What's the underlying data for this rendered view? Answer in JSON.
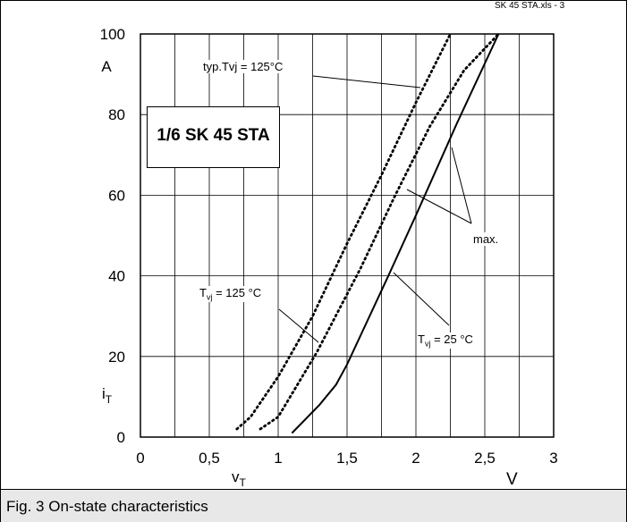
{
  "header": {
    "file_ref": "SK 45 STA.xls - 3"
  },
  "caption": "Fig. 3 On-state characteristics",
  "chart_data": {
    "type": "line",
    "title": "",
    "device_label": "1/6 SK 45 STA",
    "xlabel": {
      "main": "v",
      "sub": "T"
    },
    "ylabel": {
      "main": "i",
      "sub": "T"
    },
    "x_unit": "V",
    "y_unit": "A",
    "xlim": [
      0,
      3
    ],
    "ylim": [
      0,
      100
    ],
    "x_ticks": [
      {
        "value": 0,
        "label": "0"
      },
      {
        "value": 0.5,
        "label": "0,5"
      },
      {
        "value": 1,
        "label": "1"
      },
      {
        "value": 1.5,
        "label": "1,5"
      },
      {
        "value": 2,
        "label": "2"
      },
      {
        "value": 2.5,
        "label": "2,5"
      },
      {
        "value": 3,
        "label": "3"
      }
    ],
    "y_ticks": [
      {
        "value": 0,
        "label": "0"
      },
      {
        "value": 20,
        "label": "20"
      },
      {
        "value": 40,
        "label": "40"
      },
      {
        "value": 60,
        "label": "60"
      },
      {
        "value": 80,
        "label": "80"
      },
      {
        "value": 100,
        "label": "100"
      }
    ],
    "grid": true,
    "grid_minor_x_step": 0.25,
    "series": [
      {
        "id": "typ25",
        "style": "solid",
        "color": "#000000",
        "x": [
          1.1,
          1.3,
          1.42,
          1.5,
          1.8,
          2.0,
          2.3,
          2.6
        ],
        "y": [
          1,
          8,
          13,
          18,
          40,
          55,
          78,
          100
        ]
      },
      {
        "id": "typ125",
        "style": "dotted",
        "color": "#000000",
        "x": [
          0.7,
          0.8,
          1.0,
          1.25,
          1.5,
          1.75,
          2.0,
          2.25
        ],
        "y": [
          2,
          5,
          15,
          30,
          48,
          65,
          83,
          100
        ]
      },
      {
        "id": "max125",
        "style": "dotted",
        "color": "#000000",
        "x": [
          0.87,
          1.0,
          1.28,
          1.6,
          1.85,
          2.1,
          2.35,
          2.6
        ],
        "y": [
          2,
          5,
          21,
          42,
          60,
          77,
          91,
          100
        ]
      }
    ],
    "annotations": [
      {
        "id": "typ-tvj-125",
        "text": "typ.Tvj = 125°C"
      },
      {
        "id": "tvj-125",
        "text": "T",
        "sub": "vj",
        "rest": " = 125 °C"
      },
      {
        "id": "tvj-25",
        "text": "T",
        "sub": "vj",
        "rest": " = 25 °C"
      },
      {
        "id": "max",
        "text": "max."
      }
    ]
  }
}
